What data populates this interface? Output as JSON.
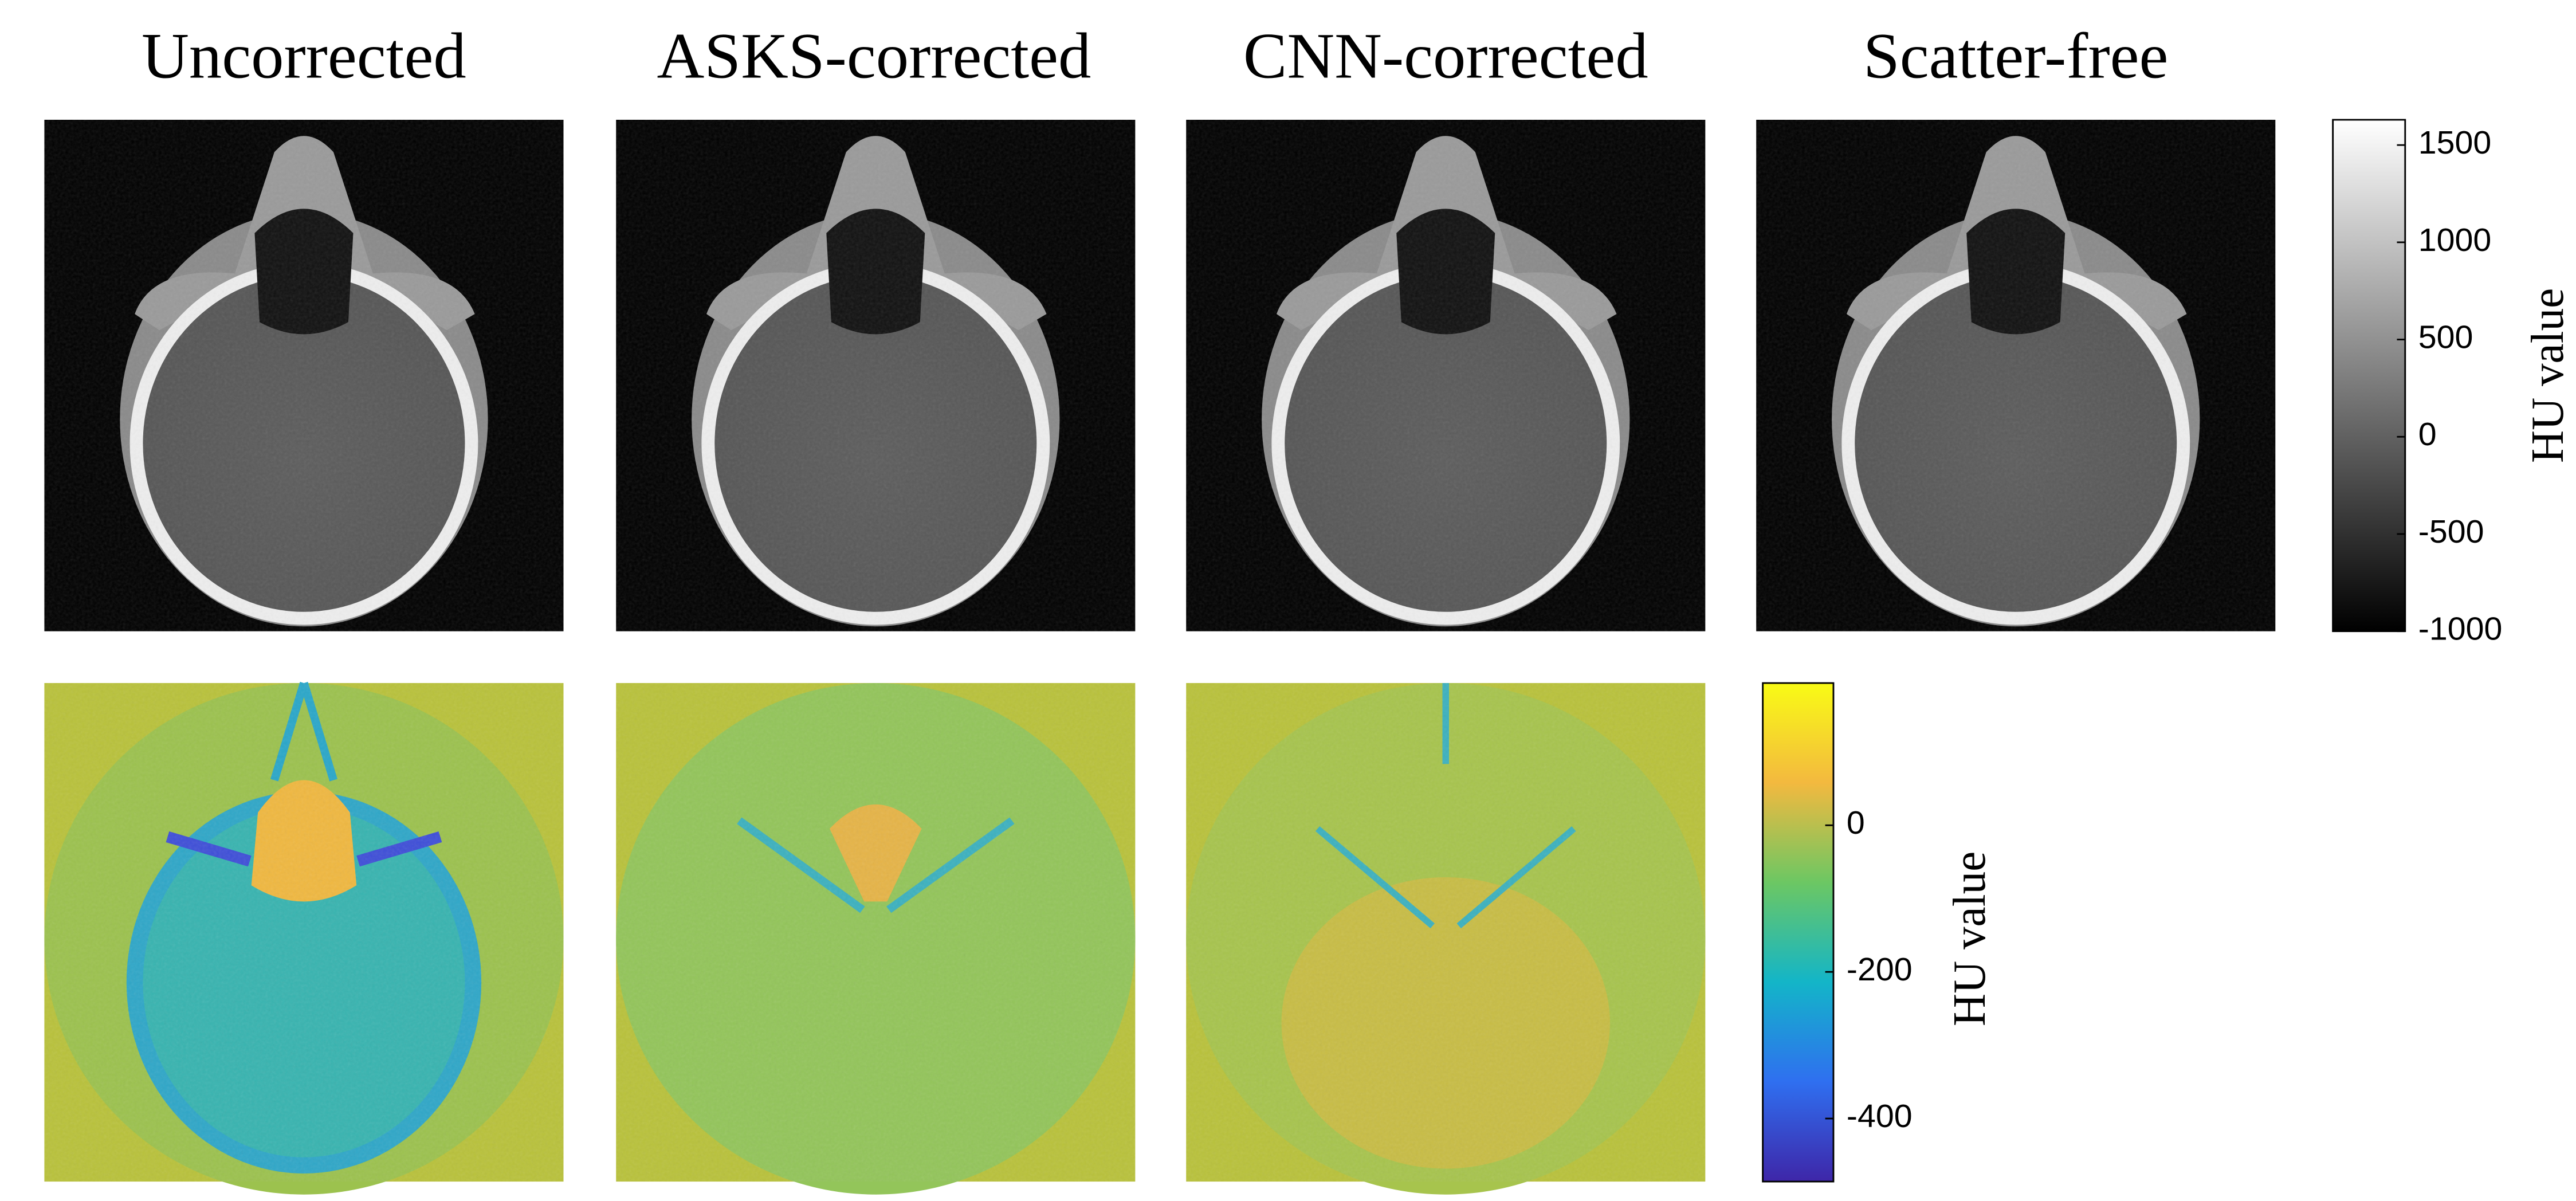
{
  "titles": [
    "Uncorrected",
    "ASKS-corrected",
    "CNN-corrected",
    "Scatter-free"
  ],
  "colorbar_top": {
    "label": "HU value",
    "range": [
      -1000,
      1630
    ],
    "ticks": [
      1500,
      1000,
      500,
      0,
      -500,
      -1000
    ]
  },
  "colorbar_bottom": {
    "label": "HU value",
    "range": [
      -486,
      194
    ],
    "ticks": [
      0,
      -200,
      -400
    ]
  }
}
